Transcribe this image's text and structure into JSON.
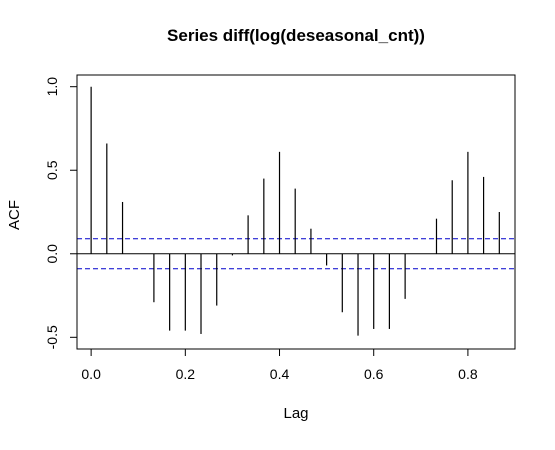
{
  "chart_data": {
    "type": "bar",
    "title": "Series  diff(log(deseasonal_cnt))",
    "xlabel": "Lag",
    "ylabel": "ACF",
    "xlim": [
      -0.03,
      0.9
    ],
    "ylim": [
      -0.57,
      1.07
    ],
    "x_ticks": [
      0.0,
      0.2,
      0.4,
      0.6,
      0.8
    ],
    "x_tick_labels": [
      "0.0",
      "0.2",
      "0.4",
      "0.6",
      "0.8"
    ],
    "y_ticks": [
      -0.5,
      0.0,
      0.5,
      1.0
    ],
    "y_tick_labels": [
      "-0.5",
      "0.0",
      "0.5",
      "1.0"
    ],
    "grid": false,
    "confidence_bound": 0.09,
    "confidence_line_color": "#0000cc",
    "bar_color": "#000000",
    "lag": [
      0.0,
      0.0333,
      0.0667,
      0.1,
      0.1333,
      0.1667,
      0.2,
      0.2333,
      0.2667,
      0.3,
      0.3333,
      0.3667,
      0.4,
      0.4333,
      0.4667,
      0.5,
      0.5333,
      0.5667,
      0.6,
      0.6333,
      0.6667,
      0.7,
      0.7333,
      0.7667,
      0.8,
      0.8333,
      0.8667
    ],
    "acf": [
      1.0,
      0.66,
      0.31,
      0.0,
      -0.29,
      -0.46,
      -0.46,
      -0.48,
      -0.31,
      -0.01,
      0.23,
      0.45,
      0.61,
      0.39,
      0.15,
      -0.07,
      -0.35,
      -0.49,
      -0.45,
      -0.45,
      -0.27,
      0.0,
      0.21,
      0.44,
      0.61,
      0.46,
      0.25
    ]
  }
}
